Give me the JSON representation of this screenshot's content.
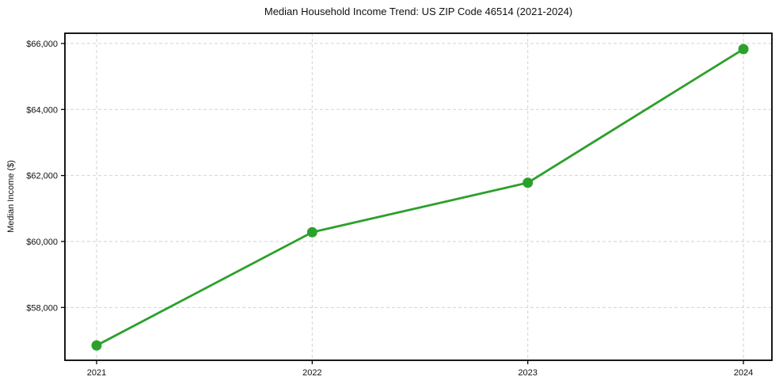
{
  "chart_data": {
    "type": "line",
    "title": "Median Household Income Trend: US ZIP Code 46514 (2021-2024)",
    "xlabel": "",
    "ylabel": "Median Income ($)",
    "categories": [
      "2021",
      "2022",
      "2023",
      "2024"
    ],
    "series": [
      {
        "name": "Median Household Income",
        "values": [
          56850,
          60280,
          61780,
          65830
        ],
        "color": "#2ca02c",
        "marker": "circle"
      }
    ],
    "ylim": [
      56400,
      66310
    ],
    "yticks": {
      "values": [
        58000,
        60000,
        62000,
        64000,
        66000
      ],
      "labels": [
        "$58,000",
        "$60,000",
        "$62,000",
        "$64,000",
        "$66,000"
      ]
    },
    "grid": {
      "on": true,
      "style": "dashed",
      "color": "#d2d2d2"
    },
    "legend": "none",
    "frame_color": "#000000",
    "tick_label_color": "#111111"
  }
}
